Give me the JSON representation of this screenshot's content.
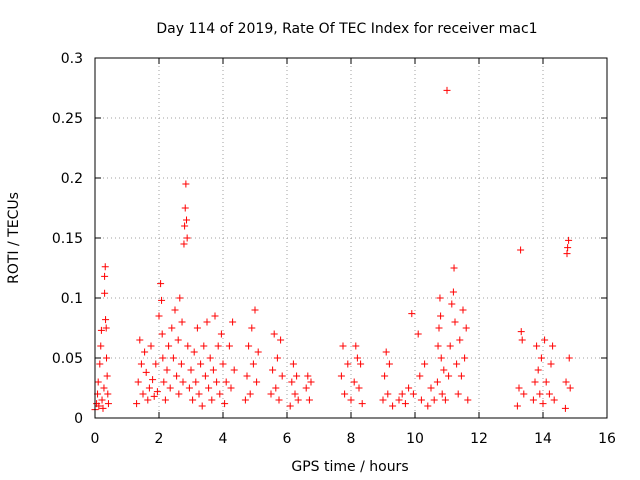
{
  "chart_data": {
    "type": "scatter",
    "title": "Day 114 of 2019, Rate Of TEC Index for receiver mac1",
    "xlabel": "GPS time / hours",
    "ylabel": "ROTI / TECUs",
    "xlim": [
      0,
      16
    ],
    "ylim": [
      0,
      0.3
    ],
    "x_ticks": [
      "0",
      "2",
      "4",
      "6",
      "8",
      "10",
      "12",
      "14",
      "16"
    ],
    "y_ticks": [
      "0",
      "0.05",
      "0.1",
      "0.15",
      "0.2",
      "0.25",
      "0.3"
    ],
    "grid": true,
    "marker": "+",
    "color": "#ff0000",
    "series": [
      {
        "name": "ROTI",
        "points": [
          [
            0.0,
            0.007
          ],
          [
            0.05,
            0.012
          ],
          [
            0.08,
            0.02
          ],
          [
            0.1,
            0.03
          ],
          [
            0.12,
            0.01
          ],
          [
            0.15,
            0.045
          ],
          [
            0.18,
            0.06
          ],
          [
            0.2,
            0.073
          ],
          [
            0.22,
            0.015
          ],
          [
            0.25,
            0.008
          ],
          [
            0.28,
            0.025
          ],
          [
            0.3,
            0.104
          ],
          [
            0.3,
            0.118
          ],
          [
            0.32,
            0.126
          ],
          [
            0.33,
            0.082
          ],
          [
            0.35,
            0.075
          ],
          [
            0.36,
            0.05
          ],
          [
            0.38,
            0.035
          ],
          [
            0.4,
            0.02
          ],
          [
            0.42,
            0.012
          ],
          [
            1.3,
            0.012
          ],
          [
            1.35,
            0.03
          ],
          [
            1.4,
            0.065
          ],
          [
            1.45,
            0.045
          ],
          [
            1.5,
            0.02
          ],
          [
            1.55,
            0.055
          ],
          [
            1.6,
            0.038
          ],
          [
            1.65,
            0.015
          ],
          [
            1.7,
            0.025
          ],
          [
            1.75,
            0.06
          ],
          [
            1.8,
            0.032
          ],
          [
            1.85,
            0.018
          ],
          [
            1.9,
            0.045
          ],
          [
            1.95,
            0.022
          ],
          [
            2.0,
            0.085
          ],
          [
            2.05,
            0.112
          ],
          [
            2.08,
            0.098
          ],
          [
            2.1,
            0.07
          ],
          [
            2.12,
            0.05
          ],
          [
            2.15,
            0.03
          ],
          [
            2.2,
            0.015
          ],
          [
            2.25,
            0.04
          ],
          [
            2.3,
            0.06
          ],
          [
            2.35,
            0.025
          ],
          [
            2.4,
            0.075
          ],
          [
            2.45,
            0.05
          ],
          [
            2.5,
            0.09
          ],
          [
            2.55,
            0.035
          ],
          [
            2.6,
            0.065
          ],
          [
            2.62,
            0.02
          ],
          [
            2.65,
            0.1
          ],
          [
            2.7,
            0.045
          ],
          [
            2.72,
            0.08
          ],
          [
            2.75,
            0.03
          ],
          [
            2.78,
            0.145
          ],
          [
            2.8,
            0.16
          ],
          [
            2.82,
            0.175
          ],
          [
            2.84,
            0.195
          ],
          [
            2.86,
            0.165
          ],
          [
            2.88,
            0.15
          ],
          [
            2.9,
            0.06
          ],
          [
            2.95,
            0.025
          ],
          [
            3.0,
            0.04
          ],
          [
            3.05,
            0.015
          ],
          [
            3.1,
            0.055
          ],
          [
            3.15,
            0.03
          ],
          [
            3.2,
            0.075
          ],
          [
            3.25,
            0.02
          ],
          [
            3.3,
            0.045
          ],
          [
            3.35,
            0.01
          ],
          [
            3.4,
            0.06
          ],
          [
            3.45,
            0.035
          ],
          [
            3.5,
            0.08
          ],
          [
            3.55,
            0.025
          ],
          [
            3.6,
            0.05
          ],
          [
            3.65,
            0.015
          ],
          [
            3.7,
            0.04
          ],
          [
            3.75,
            0.085
          ],
          [
            3.8,
            0.03
          ],
          [
            3.85,
            0.06
          ],
          [
            3.9,
            0.02
          ],
          [
            3.95,
            0.07
          ],
          [
            4.0,
            0.045
          ],
          [
            4.05,
            0.012
          ],
          [
            4.1,
            0.03
          ],
          [
            4.2,
            0.06
          ],
          [
            4.25,
            0.025
          ],
          [
            4.3,
            0.08
          ],
          [
            4.35,
            0.04
          ],
          [
            4.7,
            0.015
          ],
          [
            4.75,
            0.035
          ],
          [
            4.8,
            0.06
          ],
          [
            4.85,
            0.02
          ],
          [
            4.9,
            0.075
          ],
          [
            4.95,
            0.045
          ],
          [
            5.0,
            0.09
          ],
          [
            5.05,
            0.03
          ],
          [
            5.1,
            0.055
          ],
          [
            5.5,
            0.02
          ],
          [
            5.55,
            0.04
          ],
          [
            5.6,
            0.07
          ],
          [
            5.65,
            0.025
          ],
          [
            5.7,
            0.05
          ],
          [
            5.75,
            0.015
          ],
          [
            5.8,
            0.065
          ],
          [
            5.85,
            0.035
          ],
          [
            6.1,
            0.01
          ],
          [
            6.15,
            0.03
          ],
          [
            6.2,
            0.045
          ],
          [
            6.25,
            0.02
          ],
          [
            6.3,
            0.035
          ],
          [
            6.35,
            0.015
          ],
          [
            6.6,
            0.025
          ],
          [
            6.65,
            0.035
          ],
          [
            6.7,
            0.015
          ],
          [
            6.75,
            0.03
          ],
          [
            7.7,
            0.035
          ],
          [
            7.75,
            0.06
          ],
          [
            7.8,
            0.02
          ],
          [
            7.9,
            0.045
          ],
          [
            8.0,
            0.015
          ],
          [
            8.1,
            0.03
          ],
          [
            8.15,
            0.06
          ],
          [
            8.2,
            0.05
          ],
          [
            8.25,
            0.025
          ],
          [
            8.3,
            0.045
          ],
          [
            8.35,
            0.012
          ],
          [
            9.0,
            0.015
          ],
          [
            9.05,
            0.035
          ],
          [
            9.1,
            0.055
          ],
          [
            9.15,
            0.02
          ],
          [
            9.2,
            0.045
          ],
          [
            9.3,
            0.01
          ],
          [
            9.5,
            0.015
          ],
          [
            9.6,
            0.02
          ],
          [
            9.7,
            0.012
          ],
          [
            9.8,
            0.025
          ],
          [
            9.9,
            0.087
          ],
          [
            9.95,
            0.02
          ],
          [
            10.1,
            0.07
          ],
          [
            10.15,
            0.035
          ],
          [
            10.2,
            0.015
          ],
          [
            10.3,
            0.045
          ],
          [
            10.4,
            0.01
          ],
          [
            10.5,
            0.025
          ],
          [
            10.6,
            0.015
          ],
          [
            10.7,
            0.03
          ],
          [
            10.72,
            0.06
          ],
          [
            10.75,
            0.075
          ],
          [
            10.78,
            0.1
          ],
          [
            10.8,
            0.085
          ],
          [
            10.82,
            0.05
          ],
          [
            10.85,
            0.02
          ],
          [
            10.9,
            0.04
          ],
          [
            10.95,
            0.015
          ],
          [
            11.0,
            0.273
          ],
          [
            11.05,
            0.035
          ],
          [
            11.1,
            0.06
          ],
          [
            11.15,
            0.095
          ],
          [
            11.2,
            0.105
          ],
          [
            11.22,
            0.125
          ],
          [
            11.25,
            0.08
          ],
          [
            11.3,
            0.045
          ],
          [
            11.35,
            0.02
          ],
          [
            11.4,
            0.065
          ],
          [
            11.45,
            0.035
          ],
          [
            11.5,
            0.09
          ],
          [
            11.55,
            0.05
          ],
          [
            11.6,
            0.075
          ],
          [
            11.65,
            0.015
          ],
          [
            13.2,
            0.01
          ],
          [
            13.25,
            0.025
          ],
          [
            13.3,
            0.14
          ],
          [
            13.32,
            0.072
          ],
          [
            13.35,
            0.065
          ],
          [
            13.4,
            0.02
          ],
          [
            13.7,
            0.015
          ],
          [
            13.75,
            0.03
          ],
          [
            13.8,
            0.06
          ],
          [
            13.85,
            0.04
          ],
          [
            13.9,
            0.02
          ],
          [
            13.95,
            0.05
          ],
          [
            14.0,
            0.012
          ],
          [
            14.05,
            0.065
          ],
          [
            14.1,
            0.03
          ],
          [
            14.2,
            0.02
          ],
          [
            14.25,
            0.045
          ],
          [
            14.3,
            0.06
          ],
          [
            14.35,
            0.015
          ],
          [
            14.7,
            0.008
          ],
          [
            14.72,
            0.03
          ],
          [
            14.75,
            0.137
          ],
          [
            14.77,
            0.142
          ],
          [
            14.8,
            0.148
          ],
          [
            14.82,
            0.05
          ],
          [
            14.85,
            0.025
          ]
        ]
      }
    ]
  }
}
